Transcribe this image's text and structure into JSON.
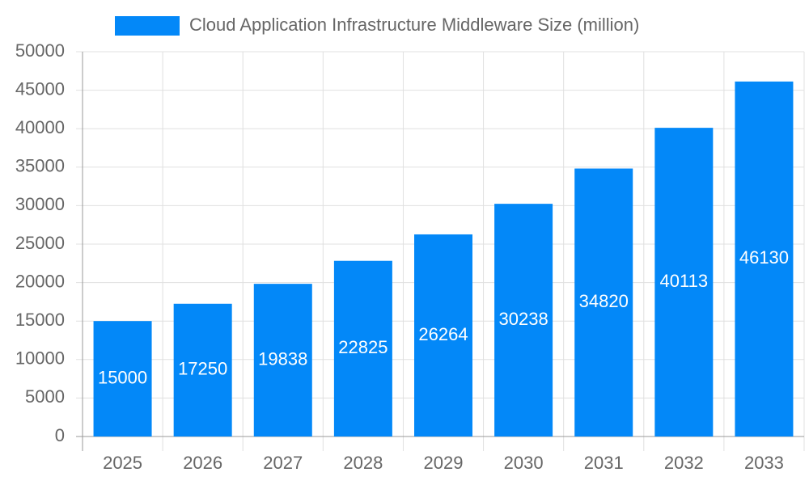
{
  "chart_data": {
    "type": "bar",
    "categories": [
      "2025",
      "2026",
      "2027",
      "2028",
      "2029",
      "2030",
      "2031",
      "2032",
      "2033"
    ],
    "series": [
      {
        "name": "Cloud Application Infrastructure Middleware Size (million)",
        "color": "#0388f8",
        "values": [
          15000,
          17250,
          19838,
          22825,
          26264,
          30238,
          34820,
          40113,
          46130
        ]
      }
    ],
    "ylim": [
      0,
      50000
    ],
    "yticks": [
      0,
      5000,
      10000,
      15000,
      20000,
      25000,
      30000,
      35000,
      40000,
      45000,
      50000
    ],
    "grid": true,
    "legend": "top"
  }
}
